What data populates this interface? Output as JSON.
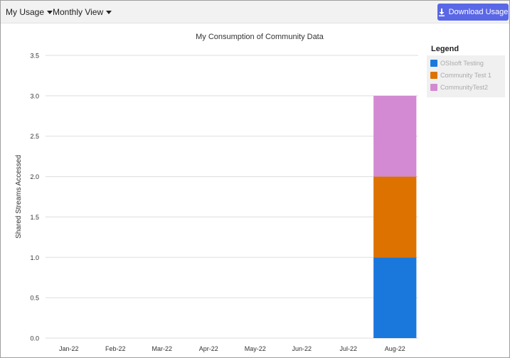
{
  "toolbar": {
    "usage_dropdown": "My Usage",
    "view_dropdown": "Monthly View",
    "download_label": "Download Usage",
    "download_icon": "download-icon"
  },
  "legend": {
    "title": "Legend"
  },
  "colors": {
    "accent": "#5a67e6",
    "series": [
      "#1a78dd",
      "#dd7200",
      "#d38ad2"
    ]
  },
  "chart_data": {
    "type": "bar",
    "stacked": true,
    "title": "My Consumption of Community Data",
    "xlabel": "",
    "ylabel": "Shared Streams Accessed",
    "categories": [
      "Jan-22",
      "Feb-22",
      "Mar-22",
      "Apr-22",
      "May-22",
      "Jun-22",
      "Jul-22",
      "Aug-22"
    ],
    "series": [
      {
        "name": "OSIsoft Testing",
        "values": [
          0,
          0,
          0,
          0,
          0,
          0,
          0,
          1
        ]
      },
      {
        "name": "Community Test 1",
        "values": [
          0,
          0,
          0,
          0,
          0,
          0,
          0,
          1
        ]
      },
      {
        "name": "CommunityTest2",
        "values": [
          0,
          0,
          0,
          0,
          0,
          0,
          0,
          1
        ]
      }
    ],
    "ylim": [
      0,
      3.5
    ],
    "yticks": [
      "0.0",
      "0.5",
      "1.0",
      "1.5",
      "2.0",
      "2.5",
      "3.0",
      "3.5"
    ],
    "grid": true,
    "legend_position": "right"
  }
}
